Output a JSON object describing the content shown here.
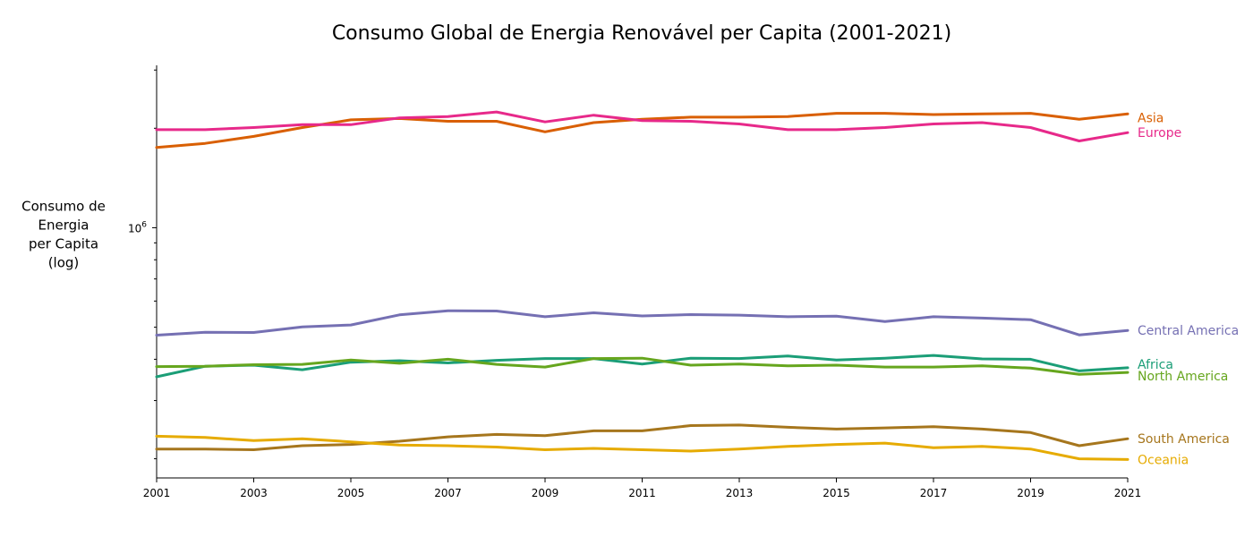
{
  "chart_data": {
    "type": "line",
    "title": "Consumo Global de Energia Renovável per Capita (2001-2021)",
    "ylabel_lines": [
      "Consumo de",
      "Energia",
      "per Capita",
      "(log)"
    ],
    "xlabel": "",
    "y_scale": "log",
    "ylim": [
      175000,
      3100000
    ],
    "xlim": [
      2001,
      2021
    ],
    "x_ticks": [
      2001,
      2003,
      2005,
      2007,
      2009,
      2011,
      2013,
      2015,
      2017,
      2019,
      2021
    ],
    "y_major_ticks": [
      {
        "value": 1000000,
        "base": "10",
        "exp": "6"
      }
    ],
    "y_minor_ticks": [
      200000,
      300000,
      400000,
      500000,
      600000,
      700000,
      800000,
      900000,
      2000000,
      3000000
    ],
    "grid": false,
    "legend": "labels at line ends",
    "x": [
      2001,
      2002,
      2003,
      2004,
      2005,
      2006,
      2007,
      2008,
      2009,
      2010,
      2011,
      2012,
      2013,
      2014,
      2015,
      2016,
      2017,
      2018,
      2019,
      2020,
      2021
    ],
    "series": [
      {
        "name": "Asia",
        "color": "#d95f02",
        "label_dy": 4,
        "values": [
          1750000,
          1800000,
          1890000,
          2010000,
          2120000,
          2140000,
          2100000,
          2100000,
          1950000,
          2080000,
          2130000,
          2160000,
          2160000,
          2170000,
          2220000,
          2220000,
          2200000,
          2210000,
          2220000,
          2130000,
          2210000
        ]
      },
      {
        "name": "Europe",
        "color": "#e7298a",
        "label_dy": 0,
        "values": [
          1980000,
          1980000,
          2010000,
          2050000,
          2050000,
          2150000,
          2170000,
          2240000,
          2090000,
          2190000,
          2110000,
          2100000,
          2060000,
          1980000,
          1980000,
          2010000,
          2060000,
          2080000,
          2010000,
          1830000,
          1940000
        ]
      },
      {
        "name": "Central America",
        "color": "#7570b3",
        "label_dy": 0,
        "values": [
          473000,
          483000,
          482000,
          501000,
          508000,
          545000,
          561000,
          560000,
          538000,
          553000,
          541000,
          546000,
          544000,
          538000,
          540000,
          520000,
          538000,
          533000,
          527000,
          474000,
          489000
        ]
      },
      {
        "name": "Africa",
        "color": "#1b9e77",
        "label_dy": -4,
        "values": [
          354000,
          381000,
          384000,
          372000,
          392000,
          396000,
          390000,
          397000,
          402000,
          402000,
          387000,
          403000,
          402000,
          409000,
          398000,
          403000,
          411000,
          401000,
          400000,
          369000,
          377000
        ]
      },
      {
        "name": "North America",
        "color": "#66a61e",
        "label_dy": 4,
        "values": [
          380000,
          381000,
          385000,
          386000,
          398000,
          389000,
          400000,
          386000,
          379000,
          402000,
          403000,
          384000,
          387000,
          382000,
          384000,
          379000,
          379000,
          382000,
          376000,
          360000,
          365000
        ]
      },
      {
        "name": "South America",
        "color": "#a6761d",
        "label_dy": 0,
        "values": [
          214000,
          214000,
          213000,
          219000,
          221000,
          226000,
          233000,
          237000,
          235000,
          243000,
          243000,
          252000,
          253000,
          249000,
          246000,
          248000,
          250000,
          246000,
          240000,
          219000,
          230000
        ]
      },
      {
        "name": "Oceania",
        "color": "#e6ab02",
        "label_dy": 0,
        "values": [
          234000,
          232000,
          227000,
          230000,
          225000,
          220000,
          219000,
          217000,
          213000,
          215000,
          213000,
          211000,
          214000,
          218000,
          221000,
          223000,
          216000,
          218000,
          214000,
          200000,
          199000
        ]
      }
    ]
  }
}
